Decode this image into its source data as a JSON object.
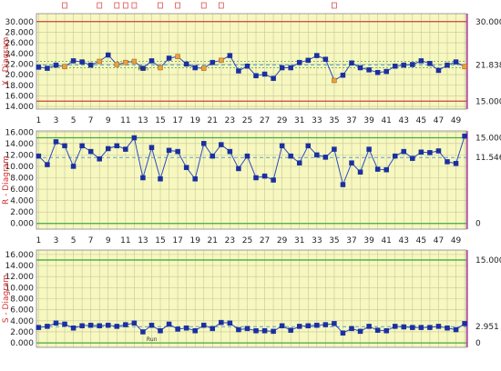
{
  "colors": {
    "plot_bg": "#f7f7c0",
    "grid": "#c4c79a",
    "series": "#2b4cc0",
    "marker": "#1a2fa0",
    "flag_marker": "#e8a040",
    "flag_box": "#e05050",
    "ucl": "#d04040",
    "lcl": "#d04040",
    "center": "#44aa44",
    "mean": "#5aa0d0",
    "lcl_zero": "#44aa44",
    "right_axis": "#c020a0",
    "axis_label": "#d03030"
  },
  "x_ticks": [
    "1",
    "3",
    "5",
    "7",
    "9",
    "11",
    "13",
    "15",
    "17",
    "19",
    "21",
    "23",
    "25",
    "27",
    "29",
    "31",
    "33",
    "35",
    "37",
    "39",
    "41",
    "43",
    "45",
    "47",
    "49"
  ],
  "chart_data": [
    {
      "type": "line",
      "id": "xbar",
      "ylabel": "X - Diagram",
      "ylim": [
        13.5,
        31.5
      ],
      "yticks": [
        "14.000",
        "16.000",
        "18.000",
        "20.000",
        "22.000",
        "24.000",
        "26.000",
        "28.000",
        "30.000"
      ],
      "ucl": 30.0,
      "ucl_label": "30.000",
      "lcl": 15.0,
      "lcl_label": "15.000",
      "center": 21.838,
      "center_label": "21.838",
      "aux_lines": [
        22.5,
        21.3
      ],
      "flag_points": [
        4,
        8,
        10,
        11,
        12,
        15,
        17,
        20,
        22,
        35,
        50
      ],
      "run_point": 12,
      "run_label": "Run",
      "x": [
        1,
        2,
        3,
        4,
        5,
        6,
        7,
        8,
        9,
        10,
        11,
        12,
        13,
        14,
        15,
        16,
        17,
        18,
        19,
        20,
        21,
        22,
        23,
        24,
        25,
        26,
        27,
        28,
        29,
        30,
        31,
        32,
        33,
        34,
        35,
        36,
        37,
        38,
        39,
        40,
        41,
        42,
        43,
        44,
        45,
        46,
        47,
        48,
        49,
        50
      ],
      "values": [
        21.4,
        21.2,
        21.8,
        21.5,
        22.6,
        22.4,
        21.8,
        22.5,
        23.7,
        21.9,
        22.3,
        22.5,
        21.2,
        22.6,
        21.3,
        23.1,
        23.4,
        22.0,
        21.3,
        21.2,
        22.3,
        22.7,
        23.6,
        20.7,
        21.6,
        19.8,
        20.1,
        19.3,
        21.3,
        21.3,
        22.3,
        22.7,
        23.6,
        22.9,
        18.9,
        19.9,
        22.2,
        21.3,
        20.9,
        20.4,
        20.6,
        21.6,
        21.8,
        21.9,
        22.6,
        22.1,
        20.8,
        21.8,
        22.4,
        21.5
      ]
    },
    {
      "type": "line",
      "id": "range",
      "ylabel": "R - Diagram",
      "ylim": [
        -1.0,
        16.2
      ],
      "yticks": [
        "0.000",
        "2.000",
        "4.000",
        "6.000",
        "8.000",
        "10.000",
        "12.000",
        "14.000",
        "16.000"
      ],
      "ucl": 15.0,
      "ucl_label": "15.000",
      "lcl": 0,
      "lcl_label": "0",
      "center": 11.546,
      "center_label": "11.546",
      "x": [
        1,
        2,
        3,
        4,
        5,
        6,
        7,
        8,
        9,
        10,
        11,
        12,
        13,
        14,
        15,
        16,
        17,
        18,
        19,
        20,
        21,
        22,
        23,
        24,
        25,
        26,
        27,
        28,
        29,
        30,
        31,
        32,
        33,
        34,
        35,
        36,
        37,
        38,
        39,
        40,
        41,
        42,
        43,
        44,
        45,
        46,
        47,
        48,
        49,
        50
      ],
      "values": [
        11.8,
        10.3,
        14.3,
        13.6,
        10.0,
        13.6,
        12.6,
        11.3,
        13.1,
        13.6,
        13.0,
        15.0,
        8.0,
        13.3,
        7.8,
        12.8,
        12.6,
        9.8,
        7.8,
        14.0,
        11.8,
        13.8,
        12.6,
        9.6,
        11.8,
        8.0,
        8.3,
        7.6,
        13.6,
        11.8,
        10.6,
        13.6,
        12.0,
        11.6,
        13.0,
        6.8,
        10.6,
        9.0,
        13.0,
        9.5,
        9.4,
        11.8,
        12.6,
        11.4,
        12.5,
        12.4,
        12.7,
        10.8,
        10.5,
        15.3
      ]
    },
    {
      "type": "line",
      "id": "stddev",
      "ylabel": "S - Diagram",
      "ylim": [
        -0.8,
        16.8
      ],
      "yticks": [
        "0.000",
        "2.000",
        "4.000",
        "6.000",
        "8.000",
        "10.000",
        "12.000",
        "14.000",
        "16.000"
      ],
      "ucl": 15.0,
      "ucl_label": "15.000",
      "lcl": 0,
      "lcl_label": "0",
      "center": 2.951,
      "center_label": "2.951",
      "run_point": 13,
      "run_label": "Run",
      "x": [
        1,
        2,
        3,
        4,
        5,
        6,
        7,
        8,
        9,
        10,
        11,
        12,
        13,
        14,
        15,
        16,
        17,
        18,
        19,
        20,
        21,
        22,
        23,
        24,
        25,
        26,
        27,
        28,
        29,
        30,
        31,
        32,
        33,
        34,
        35,
        36,
        37,
        38,
        39,
        40,
        41,
        42,
        43,
        44,
        45,
        46,
        47,
        48,
        49,
        50
      ],
      "values": [
        2.8,
        3.0,
        3.6,
        3.4,
        2.7,
        3.1,
        3.2,
        3.1,
        3.2,
        3.0,
        3.3,
        3.6,
        2.0,
        3.2,
        2.2,
        3.4,
        2.5,
        2.7,
        2.2,
        3.2,
        2.6,
        3.7,
        3.6,
        2.4,
        2.6,
        2.2,
        2.2,
        2.1,
        3.1,
        2.3,
        3.0,
        3.1,
        3.2,
        3.3,
        3.5,
        1.8,
        2.6,
        2.1,
        3.0,
        2.3,
        2.2,
        3.0,
        2.9,
        2.8,
        2.8,
        2.8,
        3.0,
        2.7,
        2.4,
        3.5
      ]
    }
  ]
}
